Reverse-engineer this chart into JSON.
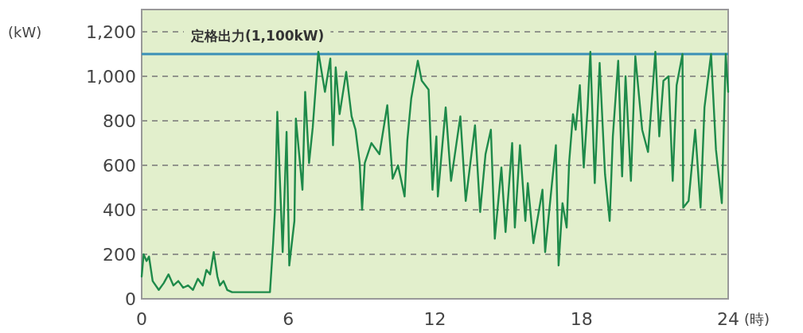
{
  "chart_data": {
    "type": "line",
    "xlabel": "(時)",
    "ylabel": "(kW)",
    "xlim": [
      0,
      24
    ],
    "xticks": [
      0,
      6,
      12,
      18,
      24
    ],
    "ylim": [
      0,
      1300
    ],
    "yticks": [
      0,
      200,
      400,
      600,
      800,
      {
        "value": 1000,
        "label": "1,000"
      },
      {
        "value": 1200,
        "label": "1,200"
      }
    ],
    "grid": "y",
    "ref_lines": [
      {
        "axis": "y",
        "value": 1100,
        "label": "定格出力(1,100kW)",
        "color": "#3a8fb7"
      }
    ],
    "series": [
      {
        "color": "#1e8a4a",
        "x": [
          0,
          0.08,
          0.2,
          0.3,
          0.45,
          0.7,
          0.9,
          1.1,
          1.3,
          1.5,
          1.7,
          1.9,
          2.1,
          2.3,
          2.5,
          2.65,
          2.8,
          2.95,
          3.1,
          3.2,
          3.35,
          3.5,
          3.7,
          5.25,
          5.38,
          5.45,
          5.55,
          5.77,
          5.93,
          6.04,
          6.25,
          6.31,
          6.58,
          6.69,
          6.85,
          7.0,
          7.23,
          7.5,
          7.72,
          7.83,
          7.94,
          8.1,
          8.37,
          8.59,
          8.75,
          8.92,
          9.02,
          9.13,
          9.4,
          9.73,
          10.05,
          10.27,
          10.49,
          10.76,
          10.87,
          11.03,
          11.3,
          11.46,
          11.74,
          11.9,
          12.06,
          12.12,
          12.44,
          12.66,
          13.04,
          13.26,
          13.64,
          13.85,
          14.07,
          14.29,
          14.45,
          14.72,
          14.89,
          15.16,
          15.27,
          15.48,
          15.7,
          15.8,
          16.03,
          16.4,
          16.51,
          16.79,
          16.95,
          17.06,
          17.22,
          17.39,
          17.49,
          17.65,
          17.76,
          17.93,
          18.09,
          18.25,
          18.36,
          18.54,
          18.74,
          18.96,
          19.15,
          19.28,
          19.5,
          19.66,
          19.8,
          20.02,
          20.2,
          20.48,
          20.72,
          21.02,
          21.18,
          21.35,
          21.56,
          21.73,
          21.89,
          22.13,
          22.16,
          22.38,
          22.65,
          22.87,
          23.03,
          23.3,
          23.5,
          23.74,
          23.9,
          24
        ],
        "values": [
          100,
          200,
          170,
          190,
          80,
          40,
          70,
          110,
          60,
          80,
          50,
          60,
          40,
          90,
          60,
          130,
          110,
          210,
          100,
          60,
          80,
          40,
          30,
          30,
          250,
          390,
          840,
          210,
          750,
          150,
          350,
          810,
          490,
          930,
          610,
          770,
          1110,
          930,
          1080,
          690,
          1040,
          830,
          1020,
          820,
          760,
          610,
          400,
          610,
          700,
          650,
          870,
          540,
          600,
          460,
          710,
          900,
          1070,
          980,
          940,
          490,
          730,
          460,
          860,
          530,
          820,
          440,
          780,
          390,
          650,
          760,
          270,
          590,
          300,
          700,
          320,
          690,
          350,
          520,
          250,
          490,
          210,
          520,
          690,
          150,
          430,
          320,
          610,
          830,
          760,
          960,
          590,
          860,
          1110,
          520,
          1060,
          560,
          350,
          730,
          1070,
          550,
          1000,
          530,
          1090,
          760,
          660,
          1110,
          730,
          980,
          1000,
          530,
          960,
          1100,
          410,
          440,
          760,
          410,
          860,
          1100,
          670,
          430,
          1100,
          930
        ]
      }
    ]
  }
}
